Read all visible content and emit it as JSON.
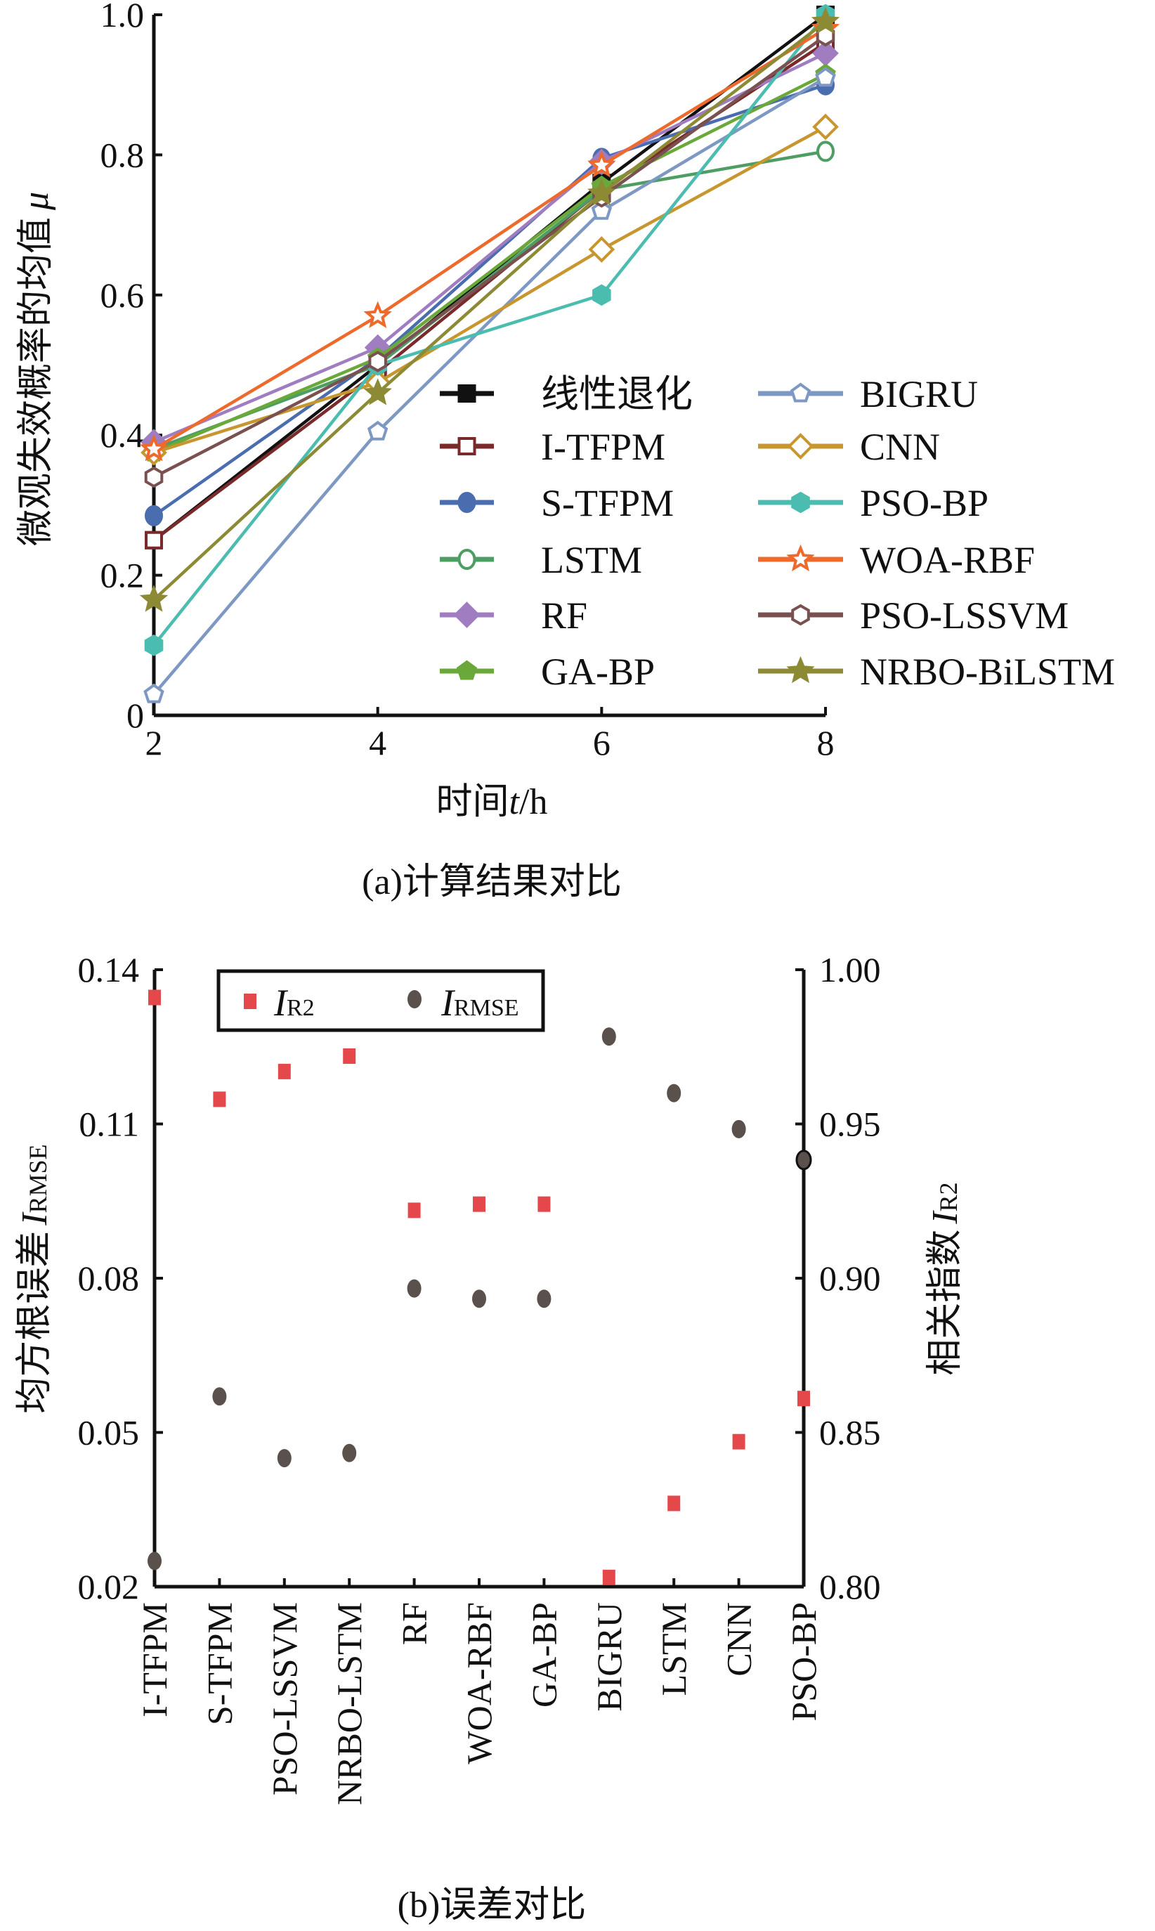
{
  "chart_data": [
    {
      "type": "line",
      "caption": "(a)计算结果对比",
      "xlabel_prefix": "时间",
      "xlabel_var": "t",
      "xlabel_unit": "/h",
      "ylabel_text": "微观失效概率的均值",
      "ylabel_var": "μ",
      "x": [
        2,
        4,
        6,
        8
      ],
      "xlim": [
        2,
        8
      ],
      "ylim": [
        0,
        1.0
      ],
      "xticks": [
        "2",
        "4",
        "6",
        "8"
      ],
      "yticks": [
        "0",
        "0.2",
        "0.4",
        "0.6",
        "0.8",
        "1.0"
      ],
      "legend_placement": "bottom-right",
      "series": [
        {
          "name": "线性退化",
          "color": "#111111",
          "marker": "square-filled",
          "values": [
            0.25,
            0.5,
            0.76,
            1.0
          ]
        },
        {
          "name": "I-TFPM",
          "color": "#7a2a2a",
          "marker": "square-open",
          "values": [
            0.25,
            0.49,
            0.75,
            0.96
          ]
        },
        {
          "name": "S-TFPM",
          "color": "#4a6db0",
          "marker": "circle-filled",
          "values": [
            0.285,
            0.51,
            0.795,
            0.9
          ]
        },
        {
          "name": "LSTM",
          "color": "#4e9e64",
          "marker": "circle-open",
          "values": [
            0.38,
            0.5,
            0.75,
            0.805
          ]
        },
        {
          "name": "RF",
          "color": "#a07cc0",
          "marker": "diamond-filled",
          "values": [
            0.39,
            0.525,
            0.79,
            0.945
          ]
        },
        {
          "name": "GA-BP",
          "color": "#6aa83a",
          "marker": "pentagon-filled",
          "values": [
            0.375,
            0.51,
            0.755,
            0.915
          ]
        },
        {
          "name": "BIGRU",
          "color": "#7e98c4",
          "marker": "pentagon-open",
          "values": [
            0.03,
            0.405,
            0.72,
            0.91
          ]
        },
        {
          "name": "CNN",
          "color": "#c8962e",
          "marker": "diamond-open",
          "values": [
            0.375,
            0.475,
            0.665,
            0.84
          ]
        },
        {
          "name": "PSO-BP",
          "color": "#4bbcb0",
          "marker": "hexagon-filled",
          "values": [
            0.1,
            0.5,
            0.6,
            1.0
          ]
        },
        {
          "name": "WOA-RBF",
          "color": "#ee6a2c",
          "marker": "star-open",
          "values": [
            0.38,
            0.57,
            0.785,
            0.98
          ]
        },
        {
          "name": "PSO-LSSVM",
          "color": "#7a5050",
          "marker": "hexagon-open",
          "values": [
            0.34,
            0.505,
            0.74,
            0.97
          ]
        },
        {
          "name": "NRBO-BiLSTM",
          "color": "#8c8a35",
          "marker": "star-filled",
          "values": [
            0.165,
            0.46,
            0.745,
            0.99
          ]
        }
      ]
    },
    {
      "type": "scatter",
      "caption": "(b)误差对比",
      "categories": [
        "I-TFPM",
        "S-TFPM",
        "PSO-LSSVM",
        "NRBO-LSTM",
        "RF",
        "WOA-RBF",
        "GA-BP",
        "BIGRU",
        "LSTM",
        "CNN",
        "PSO-BP"
      ],
      "ylabel_left_text": "均方根误差",
      "ylabel_left_var": "I",
      "ylabel_left_sub": "RMSE",
      "ylabel_right_text": "相关指数",
      "ylabel_right_var": "I",
      "ylabel_right_sub": "R2",
      "ylim_left": [
        0.02,
        0.14
      ],
      "ylim_right": [
        0.8,
        1.0
      ],
      "yticks_left": [
        "0.02",
        "0.05",
        "0.08",
        "0.11",
        "0.14"
      ],
      "yticks_right": [
        "0.80",
        "0.85",
        "0.90",
        "0.95",
        "1.00"
      ],
      "legend_placement": "top-left",
      "series": [
        {
          "name_var": "I",
          "name_sub": "R2",
          "axis": "right",
          "color": "#e5484b",
          "marker": "square",
          "values": [
            0.991,
            0.958,
            0.967,
            0.972,
            0.922,
            0.924,
            0.924,
            0.803,
            0.827,
            0.847,
            0.861
          ]
        },
        {
          "name_var": "I",
          "name_sub": "RMSE",
          "axis": "left",
          "color": "#5a504c",
          "marker": "circle",
          "values": [
            0.025,
            0.057,
            0.045,
            0.046,
            0.078,
            0.076,
            0.076,
            0.127,
            0.116,
            0.109,
            0.103
          ]
        }
      ]
    }
  ]
}
